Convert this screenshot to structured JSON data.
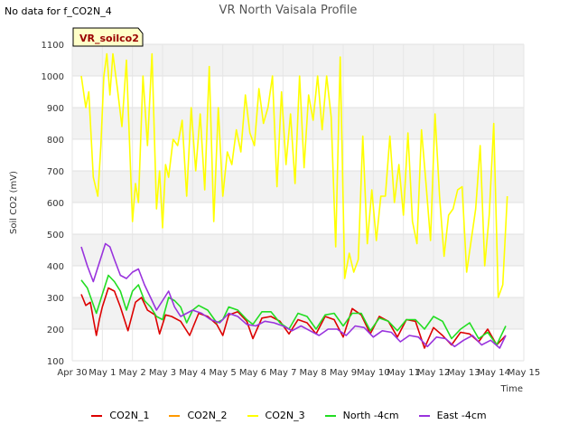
{
  "header": {
    "nodata_text": "No data for f_CO2N_4"
  },
  "chart_data": {
    "type": "line",
    "title": "VR North Vaisala Profile",
    "xlabel": "Time",
    "ylabel": "Soil CO2 (mV)",
    "annotation": "VR_soilco2",
    "ylim": [
      100,
      1100
    ],
    "yticks": [
      100,
      200,
      300,
      400,
      500,
      600,
      700,
      800,
      900,
      1000,
      1100
    ],
    "xlim": [
      0,
      15
    ],
    "xticks": [
      0,
      1,
      2,
      3,
      4,
      5,
      6,
      7,
      8,
      9,
      10,
      11,
      12,
      13,
      14,
      15
    ],
    "xticklabels": [
      "Apr 30",
      "May 1",
      "May 2",
      "May 3",
      "May 4",
      "May 5",
      "May 6",
      "May 7",
      "May 8",
      "May 9",
      "May 10",
      "May 11",
      "May 12",
      "May 13",
      "May 14",
      "May 15"
    ],
    "grid": true,
    "legend_position": "bottom",
    "series": [
      {
        "name": "CO2N_1",
        "color": "#dd0000",
        "x": [
          0.3,
          0.45,
          0.6,
          0.8,
          0.9,
          1.0,
          1.2,
          1.4,
          1.6,
          1.85,
          2.1,
          2.3,
          2.5,
          2.75,
          2.9,
          3.1,
          3.3,
          3.6,
          3.9,
          4.2,
          4.5,
          4.8,
          5.0,
          5.2,
          5.5,
          5.8,
          6.0,
          6.3,
          6.6,
          6.9,
          7.2,
          7.5,
          7.8,
          8.1,
          8.4,
          8.7,
          9.0,
          9.3,
          9.6,
          9.9,
          10.2,
          10.5,
          10.8,
          11.1,
          11.4,
          11.7,
          12.0,
          12.3,
          12.6,
          12.9,
          13.2,
          13.5,
          13.8,
          14.1,
          14.4
        ],
        "y": [
          310,
          275,
          285,
          180,
          230,
          270,
          330,
          320,
          270,
          195,
          285,
          300,
          260,
          245,
          185,
          245,
          240,
          225,
          180,
          250,
          240,
          215,
          180,
          245,
          255,
          225,
          170,
          235,
          240,
          225,
          185,
          230,
          220,
          185,
          240,
          230,
          175,
          265,
          245,
          185,
          240,
          225,
          175,
          230,
          225,
          140,
          205,
          180,
          150,
          190,
          185,
          160,
          200,
          150,
          180
        ]
      },
      {
        "name": "CO2N_2",
        "color": "#ff9900",
        "x": [],
        "y": []
      },
      {
        "name": "CO2N_3",
        "color": "#ffff00",
        "x": [
          0.3,
          0.45,
          0.55,
          0.7,
          0.85,
          0.95,
          1.05,
          1.15,
          1.25,
          1.35,
          1.5,
          1.65,
          1.8,
          2.0,
          2.1,
          2.2,
          2.35,
          2.5,
          2.65,
          2.8,
          2.9,
          3.0,
          3.1,
          3.2,
          3.35,
          3.5,
          3.65,
          3.8,
          3.95,
          4.1,
          4.25,
          4.4,
          4.55,
          4.7,
          4.85,
          5.0,
          5.15,
          5.3,
          5.45,
          5.6,
          5.75,
          5.9,
          6.05,
          6.2,
          6.35,
          6.5,
          6.65,
          6.8,
          6.95,
          7.1,
          7.25,
          7.4,
          7.55,
          7.7,
          7.85,
          8.0,
          8.15,
          8.3,
          8.45,
          8.6,
          8.75,
          8.9,
          9.05,
          9.2,
          9.35,
          9.5,
          9.65,
          9.8,
          9.95,
          10.1,
          10.25,
          10.4,
          10.55,
          10.7,
          10.85,
          11.0,
          11.15,
          11.3,
          11.45,
          11.6,
          11.75,
          11.9,
          12.05,
          12.2,
          12.35,
          12.5,
          12.65,
          12.8,
          12.95,
          13.1,
          13.25,
          13.4,
          13.55,
          13.7,
          13.85,
          14.0,
          14.15,
          14.3,
          14.45
        ],
        "y": [
          1000,
          900,
          950,
          680,
          620,
          780,
          1000,
          1070,
          940,
          1070,
          960,
          840,
          1050,
          540,
          660,
          600,
          1000,
          780,
          1070,
          580,
          700,
          520,
          720,
          680,
          800,
          780,
          860,
          620,
          900,
          700,
          880,
          640,
          1030,
          540,
          900,
          620,
          760,
          720,
          830,
          760,
          940,
          820,
          780,
          960,
          850,
          900,
          1000,
          650,
          950,
          720,
          880,
          660,
          1000,
          710,
          940,
          860,
          1000,
          830,
          1000,
          870,
          460,
          1060,
          360,
          440,
          380,
          420,
          810,
          470,
          640,
          480,
          620,
          620,
          810,
          600,
          720,
          560,
          820,
          540,
          470,
          830,
          660,
          480,
          880,
          620,
          430,
          560,
          580,
          640,
          650,
          380,
          480,
          580,
          780,
          400,
          560,
          850,
          300,
          340,
          620
        ]
      },
      {
        "name": "North -4cm",
        "color": "#22dd22",
        "x": [
          0.3,
          0.5,
          0.8,
          1.0,
          1.2,
          1.4,
          1.6,
          1.8,
          2.0,
          2.2,
          2.4,
          2.6,
          2.8,
          3.0,
          3.2,
          3.4,
          3.6,
          3.8,
          4.0,
          4.2,
          4.5,
          4.8,
          5.0,
          5.2,
          5.5,
          5.8,
          6.0,
          6.3,
          6.6,
          6.9,
          7.2,
          7.5,
          7.8,
          8.1,
          8.4,
          8.7,
          9.0,
          9.3,
          9.6,
          9.9,
          10.2,
          10.5,
          10.8,
          11.1,
          11.4,
          11.7,
          12.0,
          12.3,
          12.6,
          12.9,
          13.2,
          13.5,
          13.8,
          14.1,
          14.4
        ],
        "y": [
          355,
          330,
          250,
          310,
          370,
          350,
          320,
          260,
          320,
          340,
          290,
          270,
          240,
          230,
          300,
          290,
          270,
          220,
          260,
          275,
          260,
          220,
          230,
          270,
          260,
          230,
          215,
          255,
          255,
          220,
          200,
          250,
          240,
          200,
          245,
          250,
          210,
          250,
          250,
          195,
          235,
          225,
          195,
          230,
          230,
          200,
          240,
          225,
          170,
          200,
          220,
          170,
          190,
          150,
          210
        ]
      },
      {
        "name": "East -4cm",
        "color": "#9933dd",
        "x": [
          0.3,
          0.5,
          0.7,
          0.9,
          1.1,
          1.25,
          1.4,
          1.6,
          1.8,
          2.0,
          2.2,
          2.4,
          2.6,
          2.8,
          3.0,
          3.2,
          3.4,
          3.6,
          3.8,
          4.0,
          4.3,
          4.6,
          4.9,
          5.2,
          5.5,
          5.8,
          6.1,
          6.4,
          6.7,
          7.0,
          7.3,
          7.6,
          7.9,
          8.2,
          8.5,
          8.8,
          9.1,
          9.4,
          9.7,
          10.0,
          10.3,
          10.6,
          10.9,
          11.2,
          11.5,
          11.8,
          12.1,
          12.4,
          12.7,
          13.0,
          13.3,
          13.6,
          13.9,
          14.2,
          14.4
        ],
        "y": [
          460,
          400,
          350,
          410,
          470,
          460,
          420,
          370,
          360,
          380,
          390,
          340,
          300,
          260,
          290,
          320,
          270,
          240,
          250,
          260,
          250,
          230,
          220,
          250,
          240,
          215,
          210,
          225,
          220,
          210,
          195,
          210,
          195,
          180,
          200,
          200,
          180,
          210,
          205,
          175,
          195,
          190,
          160,
          180,
          175,
          145,
          175,
          170,
          145,
          165,
          180,
          150,
          165,
          140,
          180
        ]
      }
    ]
  }
}
